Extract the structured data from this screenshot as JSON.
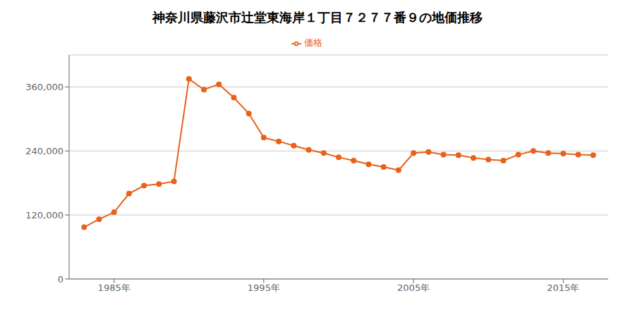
{
  "chart_data": {
    "type": "line",
    "title": "神奈川県藤沢市辻堂東海岸１丁目７２７７番９の地価推移",
    "x": [
      1983,
      1984,
      1985,
      1986,
      1987,
      1988,
      1989,
      1990,
      1991,
      1992,
      1993,
      1994,
      1995,
      1996,
      1997,
      1998,
      1999,
      2000,
      2001,
      2002,
      2003,
      2004,
      2005,
      2006,
      2007,
      2008,
      2009,
      2010,
      2011,
      2012,
      2013,
      2014,
      2015,
      2016,
      2017
    ],
    "series": [
      {
        "name": "価格",
        "color": "#E8621A",
        "marker": "circle",
        "values": [
          97000,
          112000,
          125000,
          160000,
          175000,
          178000,
          183000,
          375000,
          355000,
          365000,
          340000,
          310000,
          265000,
          258000,
          250000,
          242000,
          236000,
          228000,
          222000,
          215000,
          210000,
          204000,
          236000,
          238000,
          233000,
          232000,
          227000,
          224000,
          222000,
          233000,
          240000,
          236000,
          235000,
          233000,
          232000
        ]
      }
    ],
    "xlim": [
      1982,
      2018
    ],
    "xticks": [
      {
        "value": 1985,
        "label": "1985年"
      },
      {
        "value": 1995,
        "label": "1995年"
      },
      {
        "value": 2005,
        "label": "2005年"
      },
      {
        "value": 2015,
        "label": "2015年"
      }
    ],
    "ylim": [
      0,
      420000
    ],
    "yticks": [
      0,
      {
        "value": 120000,
        "label": "120,000"
      },
      {
        "value": 240000,
        "label": "240,000"
      },
      {
        "value": 360000,
        "label": "360,000"
      }
    ],
    "grid": true,
    "legend": "top"
  }
}
